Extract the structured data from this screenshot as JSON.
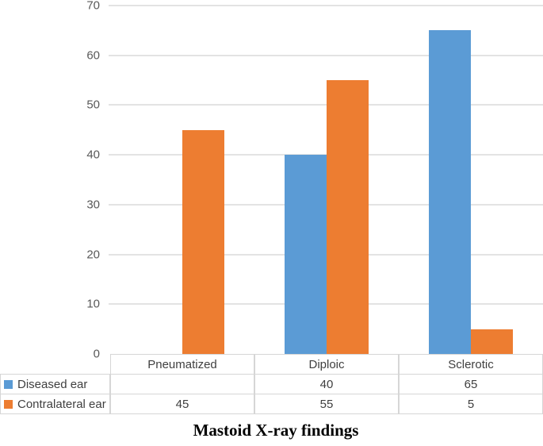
{
  "chart_data": {
    "type": "bar",
    "title": "Mastoid X-ray findings",
    "categories": [
      "Pneumatized",
      "Diploic",
      "Sclerotic"
    ],
    "series": [
      {
        "name": "Diseased ear",
        "color": "#5B9BD5",
        "values": [
          null,
          40,
          65
        ]
      },
      {
        "name": "Contralateral ear",
        "color": "#ED7D31",
        "values": [
          45,
          55,
          5
        ]
      }
    ],
    "ylim": [
      0,
      70
    ],
    "yticks": [
      0,
      10,
      20,
      30,
      40,
      50,
      60,
      70
    ],
    "grid": true,
    "legend_position": "data-table-left",
    "data_table_shown": true,
    "colors": {
      "gridline": "#E3E3E3",
      "table_border": "#D6D6D6",
      "axis_text": "#595959",
      "table_text": "#3F3F3F"
    }
  }
}
